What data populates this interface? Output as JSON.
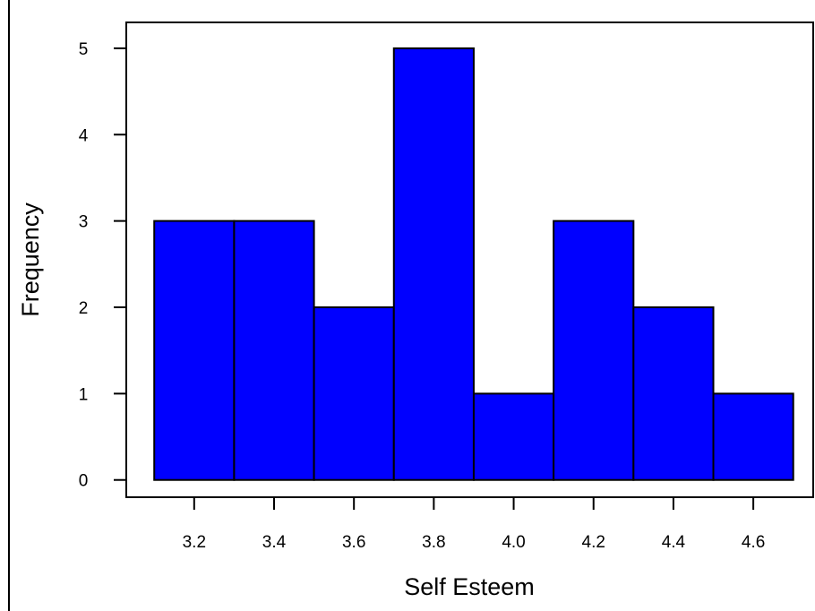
{
  "chart_data": {
    "type": "bar",
    "subtype": "histogram",
    "xlabel": "Self Esteem",
    "ylabel": "Frequency",
    "bins": [
      {
        "start": 3.1,
        "end": 3.3,
        "count": 3
      },
      {
        "start": 3.3,
        "end": 3.5,
        "count": 3
      },
      {
        "start": 3.5,
        "end": 3.7,
        "count": 2
      },
      {
        "start": 3.7,
        "end": 3.9,
        "count": 5
      },
      {
        "start": 3.9,
        "end": 4.1,
        "count": 1
      },
      {
        "start": 4.1,
        "end": 4.3,
        "count": 3
      },
      {
        "start": 4.3,
        "end": 4.5,
        "count": 2
      },
      {
        "start": 4.5,
        "end": 4.7,
        "count": 1
      }
    ],
    "xticks": [
      "3.2",
      "3.4",
      "3.6",
      "3.8",
      "4.0",
      "4.2",
      "4.4",
      "4.6"
    ],
    "yticks": [
      "0",
      "1",
      "2",
      "3",
      "4",
      "5"
    ],
    "xlim": [
      3.03,
      4.75
    ],
    "ylim": [
      -0.2,
      5.3
    ],
    "grid": false,
    "colors": {
      "bar_fill": "#0000ff",
      "bar_stroke": "#000000"
    }
  }
}
